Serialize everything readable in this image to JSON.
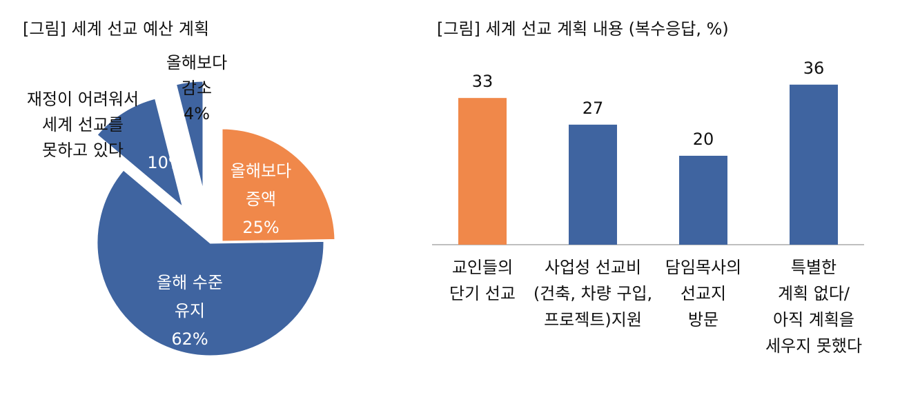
{
  "colors": {
    "orange": "#F0884A",
    "blue": "#3F64A0",
    "axis": "#AAAAAA"
  },
  "chart_data": [
    {
      "type": "pie",
      "title": "[그림] 세계 선교 예산 계획",
      "slices": [
        {
          "name": "올해보다 증액",
          "value": 25,
          "color": "#F0884A",
          "label_lines": [
            "올해보다",
            "증액",
            "25%"
          ]
        },
        {
          "name": "올해 수준 유지",
          "value": 62,
          "color": "#3F64A0",
          "label_lines": [
            "올해 수준",
            "유지",
            "62%"
          ]
        },
        {
          "name": "재정이 어려워서 세계 선교를 못하고 있다",
          "value": 10,
          "color": "#3F64A0",
          "label_lines": [
            "10%"
          ],
          "callout_lines": [
            "재정이 어려워서",
            "세계 선교를",
            "못하고 있다"
          ]
        },
        {
          "name": "올해보다 감소",
          "value": 4,
          "color": "#3F64A0",
          "label_lines": [
            "올해보다",
            "감소",
            "4%"
          ]
        }
      ]
    },
    {
      "type": "bar",
      "title": "[그림] 세계 선교 계획 내용 (복수응답, %)",
      "categories": [
        [
          "교인들의",
          "단기 선교"
        ],
        [
          "사업성 선교비",
          "(건축, 차량 구입,",
          "프로젝트)지원"
        ],
        [
          "담임목사의",
          "선교지",
          "방문"
        ],
        [
          "특별한",
          "계획 없다/",
          "아직 계획을",
          "세우지 못했다"
        ]
      ],
      "values": [
        33,
        27,
        20,
        36
      ],
      "colors": [
        "#F0884A",
        "#3F64A0",
        "#3F64A0",
        "#3F64A0"
      ],
      "data_labels": [
        "33",
        "27",
        "20",
        "36"
      ]
    }
  ]
}
